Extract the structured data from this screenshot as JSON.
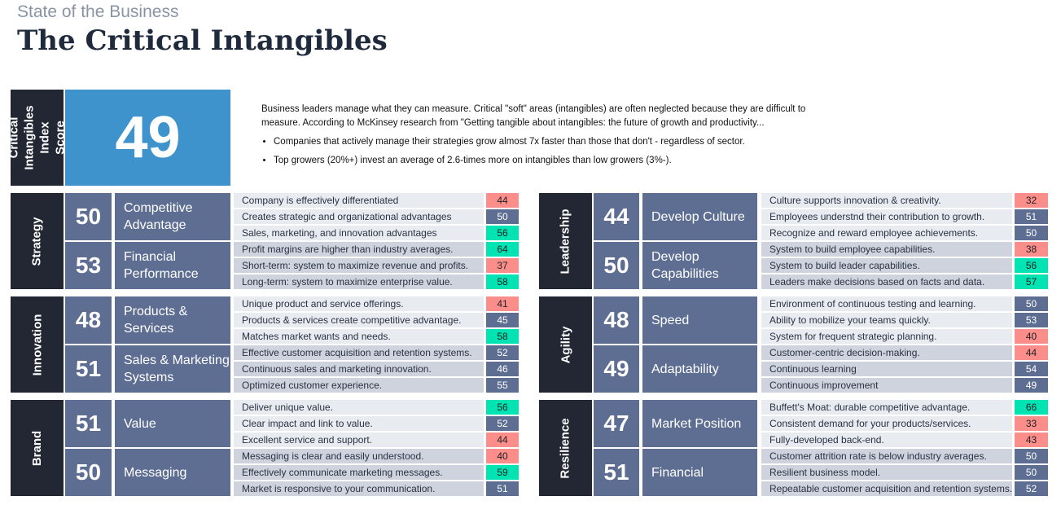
{
  "header": {
    "subtitle": "State of the Business",
    "title": "The Critical Intangibles"
  },
  "index": {
    "label": "Critical Intangibles Index Score",
    "score": "49"
  },
  "intro": {
    "paragraph": "Business leaders manage what they can measure.  Critical \"soft\" areas (intangibles) are often neglected because they are difficult to measure.  According to McKinsey research from \"Getting tangible about intangibles: the future of growth and productivity...",
    "bullets": [
      "Companies that actively manage their strategies grow almost 7x faster than those that don't - regardless of sector.",
      "Top growers (20%+) invest an average of 2.6-times more on intangibles than low growers (3%-)."
    ]
  },
  "colors": {
    "low": "#fb8e8b",
    "mid": "#5e6e93",
    "high": "#00e3b2",
    "category": "#222733",
    "index": "#3e93cc"
  },
  "sections": [
    {
      "category": "Strategy",
      "subs": [
        {
          "score": "50",
          "label": "Competitive Advantage",
          "items": [
            [
              "Company is effectively differentiated",
              44
            ],
            [
              "Creates strategic and organizational advantages",
              50
            ],
            [
              "Sales, marketing, and innovation advantages",
              56
            ]
          ]
        },
        {
          "score": "53",
          "label": "Financial Performance",
          "items": [
            [
              "Profit margins are higher than industry averages.",
              64
            ],
            [
              "Short-term:  system to maximize revenue and profits.",
              37
            ],
            [
              "Long-term:  system to maximize enterprise value.",
              58
            ]
          ]
        }
      ]
    },
    {
      "category": "Leadership",
      "subs": [
        {
          "score": "44",
          "label": "Develop Culture",
          "items": [
            [
              "Culture supports innovation & creativity.",
              32
            ],
            [
              "Employees understnd their contribution to growth.",
              51
            ],
            [
              "Recognize and reward employee achievements.",
              50
            ]
          ]
        },
        {
          "score": "50",
          "label": "Develop Capabilities",
          "items": [
            [
              "System to build employee capabilities.",
              38
            ],
            [
              "System to build leader capabilities.",
              56
            ],
            [
              "Leaders make decisions based on facts and data.",
              57
            ]
          ]
        }
      ]
    },
    {
      "category": "Innovation",
      "subs": [
        {
          "score": "48",
          "label": "Products & Services",
          "items": [
            [
              "Unique product and service offerings.",
              41
            ],
            [
              "Products & services create competitive advantage.",
              45
            ],
            [
              "Matches market wants and needs.",
              58
            ]
          ]
        },
        {
          "score": "51",
          "label": "Sales & Marketing Systems",
          "items": [
            [
              "Effective customer acquisition and retention systems.",
              52
            ],
            [
              "Continuous sales and marketing innovation.",
              46
            ],
            [
              "Optimized customer experience.",
              55
            ]
          ]
        }
      ]
    },
    {
      "category": "Agility",
      "subs": [
        {
          "score": "48",
          "label": "Speed",
          "items": [
            [
              "Environment of continuous testing and learning.",
              50
            ],
            [
              "Ability to mobilize your teams quickly.",
              53
            ],
            [
              "System for frequent strategic planning.",
              40
            ]
          ]
        },
        {
          "score": "49",
          "label": "Adaptability",
          "items": [
            [
              "Customer-centric decision-making.",
              44
            ],
            [
              "Continuous learning",
              54
            ],
            [
              "Continuous improvement",
              49
            ]
          ]
        }
      ]
    },
    {
      "category": "Brand",
      "subs": [
        {
          "score": "51",
          "label": "Value",
          "items": [
            [
              "Deliver unique value.",
              56
            ],
            [
              "Clear impact and link to value.",
              52
            ],
            [
              "Excellent service and support.",
              44
            ]
          ]
        },
        {
          "score": "50",
          "label": "Messaging",
          "items": [
            [
              "Messaging is clear and easily understood.",
              40
            ],
            [
              "Effectively communicate marketing messages.",
              59
            ],
            [
              "Market is responsive to your communication.",
              51
            ]
          ]
        }
      ]
    },
    {
      "category": "Resilience",
      "subs": [
        {
          "score": "47",
          "label": "Market Position",
          "items": [
            [
              "Buffett's Moat:  durable competitive advantage.",
              66
            ],
            [
              "Consistent demand for your products/services.",
              33
            ],
            [
              "Fully-developed back-end.",
              43
            ]
          ]
        },
        {
          "score": "51",
          "label": "Financial",
          "items": [
            [
              "Customer attrition rate is below industry averages.",
              50
            ],
            [
              "Resilient business model.",
              50
            ],
            [
              "Repeatable customer acquisition and retention systems.",
              52
            ]
          ]
        }
      ]
    }
  ]
}
